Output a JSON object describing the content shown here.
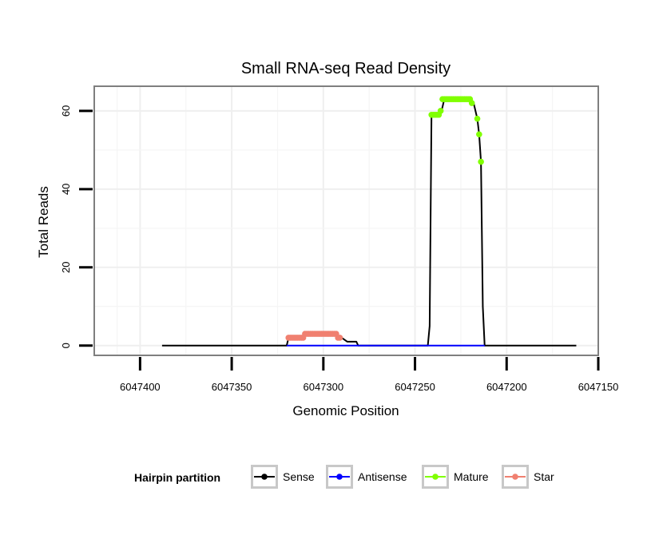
{
  "chart_data": {
    "type": "line",
    "title": "Small RNA-seq Read Density",
    "xlabel": "Genomic Position",
    "ylabel": "Total Reads",
    "x_reversed": true,
    "xlim": [
      6047400,
      6047150
    ],
    "x_ticks": [
      6047400,
      6047350,
      6047300,
      6047250,
      6047200,
      6047150
    ],
    "x_tick_labels": [
      "6047400",
      "6047350",
      "6047300",
      "6047250",
      "6047200",
      "6047150"
    ],
    "ylim": [
      0,
      65
    ],
    "y_ticks": [
      0,
      20,
      40,
      60
    ],
    "y_tick_labels": [
      "0",
      "20",
      "40",
      "60"
    ],
    "grid": true,
    "series": [
      {
        "name": "Sense",
        "color": "#000000",
        "marker": false,
        "points": [
          [
            6047388,
            0
          ],
          [
            6047320,
            0
          ],
          [
            6047319,
            2
          ],
          [
            6047311,
            2
          ],
          [
            6047310,
            3
          ],
          [
            6047293,
            3
          ],
          [
            6047290,
            2
          ],
          [
            6047287,
            1
          ],
          [
            6047282,
            1
          ],
          [
            6047281,
            0
          ],
          [
            6047243,
            0
          ],
          [
            6047242,
            5
          ],
          [
            6047241,
            59
          ],
          [
            6047236,
            59
          ],
          [
            6047234,
            63
          ],
          [
            6047220,
            63
          ],
          [
            6047218,
            62
          ],
          [
            6047216,
            58
          ],
          [
            6047215,
            54
          ],
          [
            6047214,
            47
          ],
          [
            6047213,
            10
          ],
          [
            6047212,
            0
          ],
          [
            6047162,
            0
          ]
        ]
      },
      {
        "name": "Antisense",
        "color": "#0000ff",
        "marker": false,
        "points": [
          [
            6047320,
            0
          ],
          [
            6047287,
            0
          ],
          [
            6047243,
            0
          ],
          [
            6047212,
            0
          ]
        ]
      },
      {
        "name": "Mature",
        "color": "#80ff00",
        "marker": true,
        "points": [
          [
            6047241,
            59
          ],
          [
            6047240,
            59
          ],
          [
            6047239,
            59
          ],
          [
            6047238,
            59
          ],
          [
            6047237,
            59
          ],
          [
            6047236,
            60
          ],
          [
            6047235,
            63
          ],
          [
            6047234,
            63
          ],
          [
            6047233,
            63
          ],
          [
            6047232,
            63
          ],
          [
            6047231,
            63
          ],
          [
            6047230,
            63
          ],
          [
            6047229,
            63
          ],
          [
            6047228,
            63
          ],
          [
            6047227,
            63
          ],
          [
            6047226,
            63
          ],
          [
            6047225,
            63
          ],
          [
            6047224,
            63
          ],
          [
            6047223,
            63
          ],
          [
            6047222,
            63
          ],
          [
            6047221,
            63
          ],
          [
            6047220,
            63
          ],
          [
            6047219,
            62
          ],
          [
            6047216,
            58
          ],
          [
            6047215,
            54
          ],
          [
            6047214,
            47
          ]
        ]
      },
      {
        "name": "Star",
        "color": "#f08070",
        "marker": true,
        "points": [
          [
            6047319,
            2
          ],
          [
            6047318,
            2
          ],
          [
            6047317,
            2
          ],
          [
            6047316,
            2
          ],
          [
            6047315,
            2
          ],
          [
            6047314,
            2
          ],
          [
            6047313,
            2
          ],
          [
            6047312,
            2
          ],
          [
            6047311,
            2
          ],
          [
            6047310,
            3
          ],
          [
            6047309,
            3
          ],
          [
            6047308,
            3
          ],
          [
            6047307,
            3
          ],
          [
            6047306,
            3
          ],
          [
            6047305,
            3
          ],
          [
            6047304,
            3
          ],
          [
            6047303,
            3
          ],
          [
            6047302,
            3
          ],
          [
            6047301,
            3
          ],
          [
            6047300,
            3
          ],
          [
            6047299,
            3
          ],
          [
            6047298,
            3
          ],
          [
            6047297,
            3
          ],
          [
            6047296,
            3
          ],
          [
            6047295,
            3
          ],
          [
            6047294,
            3
          ],
          [
            6047293,
            3
          ],
          [
            6047292,
            2
          ],
          [
            6047291,
            2
          ]
        ]
      }
    ],
    "legend": {
      "title": "Hairpin partition",
      "position": "bottom",
      "entries": [
        "Sense",
        "Antisense",
        "Mature",
        "Star"
      ]
    }
  }
}
